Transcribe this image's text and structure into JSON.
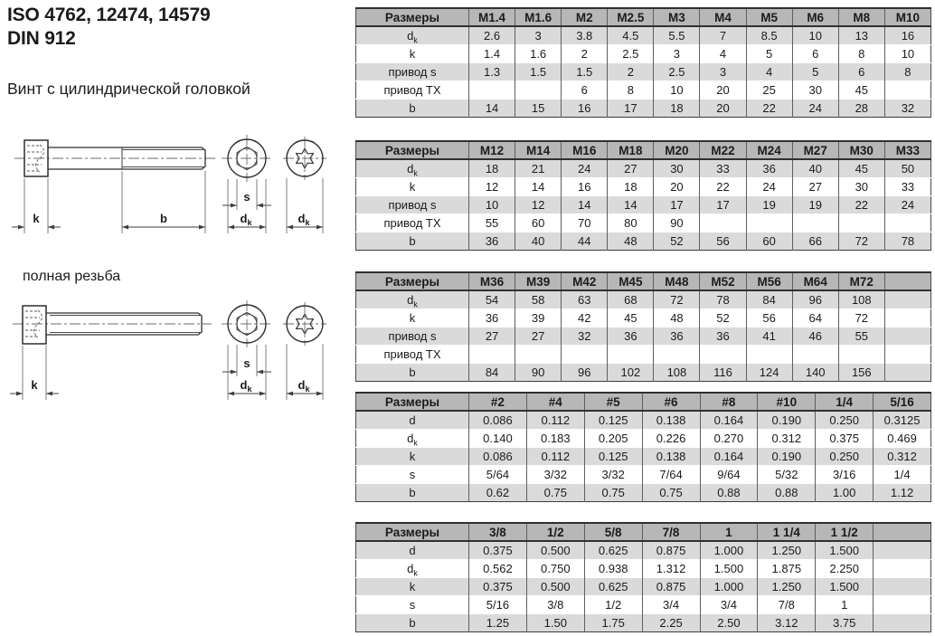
{
  "header": {
    "standards_line": "ISO 4762, 12474, 14579",
    "din_line": "DIN 912",
    "product_name": "Винт с цилиндрической головкой"
  },
  "annotations": {
    "full_thread": "полная резьба",
    "dim_k": "k",
    "dim_b": "b",
    "dim_s": "s",
    "dim_dk_main": "d",
    "dim_dk_sub": "k"
  },
  "colors": {
    "table_header_bg": "#b7b7b7",
    "table_row_alt_bg": "#dadada",
    "table_row_bg": "#ffffff",
    "table_border_dark": "#303030",
    "text": "#1b1b1b"
  },
  "tables": [
    {
      "header": [
        "Размеры",
        "M1.4",
        "M1.6",
        "M2",
        "M2.5",
        "M3",
        "M4",
        "M5",
        "M6",
        "M8",
        "M10"
      ],
      "rows": [
        {
          "label": "d",
          "sub": "k",
          "values": [
            "2.6",
            "3",
            "3.8",
            "4.5",
            "5.5",
            "7",
            "8.5",
            "10",
            "13",
            "16"
          ]
        },
        {
          "label": "k",
          "sub": "",
          "values": [
            "1.4",
            "1.6",
            "2",
            "2.5",
            "3",
            "4",
            "5",
            "6",
            "8",
            "10"
          ]
        },
        {
          "label": "привод s",
          "sub": "",
          "values": [
            "1.3",
            "1.5",
            "1.5",
            "2",
            "2.5",
            "3",
            "4",
            "5",
            "6",
            "8"
          ]
        },
        {
          "label": "привод TX",
          "sub": "",
          "values": [
            "",
            "",
            "6",
            "8",
            "10",
            "20",
            "25",
            "30",
            "45",
            ""
          ]
        },
        {
          "label": "b",
          "sub": "",
          "values": [
            "14",
            "15",
            "16",
            "17",
            "18",
            "20",
            "22",
            "24",
            "28",
            "32"
          ]
        }
      ]
    },
    {
      "header": [
        "Размеры",
        "M12",
        "M14",
        "M16",
        "M18",
        "M20",
        "M22",
        "M24",
        "M27",
        "M30",
        "M33"
      ],
      "rows": [
        {
          "label": "d",
          "sub": "k",
          "values": [
            "18",
            "21",
            "24",
            "27",
            "30",
            "33",
            "36",
            "40",
            "45",
            "50"
          ]
        },
        {
          "label": "k",
          "sub": "",
          "values": [
            "12",
            "14",
            "16",
            "18",
            "20",
            "22",
            "24",
            "27",
            "30",
            "33"
          ]
        },
        {
          "label": "привод s",
          "sub": "",
          "values": [
            "10",
            "12",
            "14",
            "14",
            "17",
            "17",
            "19",
            "19",
            "22",
            "24"
          ]
        },
        {
          "label": "привод TX",
          "sub": "",
          "values": [
            "55",
            "60",
            "70",
            "80",
            "90",
            "",
            "",
            "",
            "",
            ""
          ]
        },
        {
          "label": "b",
          "sub": "",
          "values": [
            "36",
            "40",
            "44",
            "48",
            "52",
            "56",
            "60",
            "66",
            "72",
            "78"
          ]
        }
      ]
    },
    {
      "header": [
        "Размеры",
        "M36",
        "M39",
        "M42",
        "M45",
        "M48",
        "M52",
        "M56",
        "M64",
        "M72",
        ""
      ],
      "rows": [
        {
          "label": "d",
          "sub": "k",
          "values": [
            "54",
            "58",
            "63",
            "68",
            "72",
            "78",
            "84",
            "96",
            "108",
            ""
          ]
        },
        {
          "label": "k",
          "sub": "",
          "values": [
            "36",
            "39",
            "42",
            "45",
            "48",
            "52",
            "56",
            "64",
            "72",
            ""
          ]
        },
        {
          "label": "привод s",
          "sub": "",
          "values": [
            "27",
            "27",
            "32",
            "36",
            "36",
            "36",
            "41",
            "46",
            "55",
            ""
          ]
        },
        {
          "label": "привод TX",
          "sub": "",
          "values": [
            "",
            "",
            "",
            "",
            "",
            "",
            "",
            "",
            "",
            ""
          ]
        },
        {
          "label": "b",
          "sub": "",
          "values": [
            "84",
            "90",
            "96",
            "102",
            "108",
            "116",
            "124",
            "140",
            "156",
            ""
          ]
        }
      ]
    },
    {
      "header": [
        "Размеры",
        "#2",
        "#4",
        "#5",
        "#6",
        "#8",
        "#10",
        "1/4",
        "5/16"
      ],
      "rows": [
        {
          "label": "d",
          "sub": "",
          "values": [
            "0.086",
            "0.112",
            "0.125",
            "0.138",
            "0.164",
            "0.190",
            "0.250",
            "0.3125"
          ]
        },
        {
          "label": "d",
          "sub": "k",
          "values": [
            "0.140",
            "0.183",
            "0.205",
            "0.226",
            "0.270",
            "0.312",
            "0.375",
            "0.469"
          ]
        },
        {
          "label": "k",
          "sub": "",
          "values": [
            "0.086",
            "0.112",
            "0.125",
            "0.138",
            "0.164",
            "0.190",
            "0.250",
            "0.312"
          ]
        },
        {
          "label": "s",
          "sub": "",
          "values": [
            "5/64",
            "3/32",
            "3/32",
            "7/64",
            "9/64",
            "5/32",
            "3/16",
            "1/4"
          ]
        },
        {
          "label": "b",
          "sub": "",
          "values": [
            "0.62",
            "0.75",
            "0.75",
            "0.75",
            "0.88",
            "0.88",
            "1.00",
            "1.12"
          ]
        }
      ]
    },
    {
      "header": [
        "Размеры",
        "3/8",
        "1/2",
        "5/8",
        "7/8",
        "1",
        "1 1/4",
        "1 1/2",
        ""
      ],
      "rows": [
        {
          "label": "d",
          "sub": "",
          "values": [
            "0.375",
            "0.500",
            "0.625",
            "0.875",
            "1.000",
            "1.250",
            "1.500",
            ""
          ]
        },
        {
          "label": "d",
          "sub": "k",
          "values": [
            "0.562",
            "0.750",
            "0.938",
            "1.312",
            "1.500",
            "1.875",
            "2.250",
            ""
          ]
        },
        {
          "label": "k",
          "sub": "",
          "values": [
            "0.375",
            "0.500",
            "0.625",
            "0.875",
            "1.000",
            "1.250",
            "1.500",
            ""
          ]
        },
        {
          "label": "s",
          "sub": "",
          "values": [
            "5/16",
            "3/8",
            "1/2",
            "3/4",
            "3/4",
            "7/8",
            "1",
            ""
          ]
        },
        {
          "label": "b",
          "sub": "",
          "values": [
            "1.25",
            "1.50",
            "1.75",
            "2.25",
            "2.50",
            "3.12",
            "3.75",
            ""
          ]
        }
      ]
    }
  ]
}
